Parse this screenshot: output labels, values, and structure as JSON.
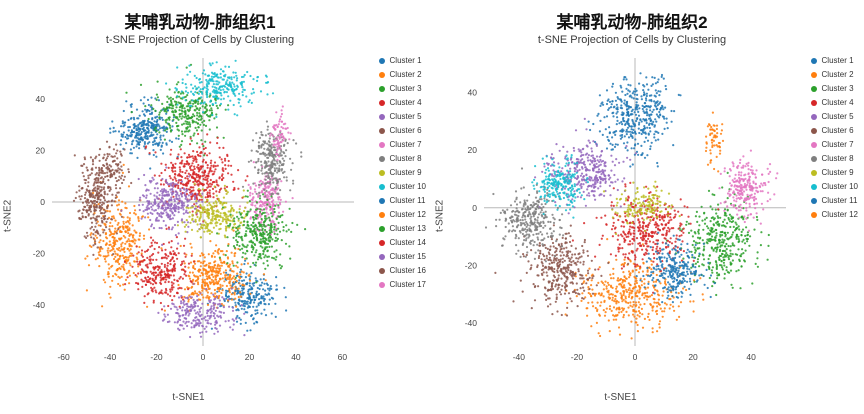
{
  "chart_data": [
    {
      "type": "scatter",
      "title": "某哺乳动物-肺组织1",
      "subtitle": "t-SNE Projection of Cells by Clustering",
      "xlabel": "t-SNE1",
      "ylabel": "t-SNE2",
      "x_domain": [
        -65,
        65
      ],
      "y_domain": [
        -56,
        56
      ],
      "xticks": [
        -60,
        -40,
        -20,
        0,
        20,
        40,
        60
      ],
      "yticks": [
        -40,
        -20,
        0,
        20,
        40
      ],
      "zerolines": true,
      "grid": false,
      "legend_position": "right",
      "clusters": [
        {
          "label": "Cluster 1",
          "color": "#1f77b4",
          "cx": -25,
          "cy": 28,
          "sx": 6,
          "sy": 5,
          "n": 300
        },
        {
          "label": "Cluster 2",
          "color": "#ff7f0e",
          "cx": -36,
          "cy": -16,
          "sx": 5,
          "sy": 8,
          "n": 320
        },
        {
          "label": "Cluster 3",
          "color": "#2ca02c",
          "cx": -7,
          "cy": 35,
          "sx": 7,
          "sy": 5,
          "n": 300
        },
        {
          "label": "Cluster 4",
          "color": "#d62728",
          "cx": -2,
          "cy": 10,
          "sx": 8,
          "sy": 6,
          "n": 380
        },
        {
          "label": "Cluster 5",
          "color": "#9467bd",
          "cx": -15,
          "cy": -1,
          "sx": 6,
          "sy": 5,
          "n": 300
        },
        {
          "label": "Cluster 6",
          "color": "#8c564b",
          "cx": -46,
          "cy": 1,
          "sx": 4,
          "sy": 9,
          "n": 300
        },
        {
          "label": "Cluster 7",
          "color": "#e377c2",
          "cx": 27,
          "cy": 1,
          "sx": 4,
          "sy": 6,
          "n": 220
        },
        {
          "label": "Cluster 8",
          "color": "#7f7f7f",
          "cx": 30,
          "cy": 16,
          "sx": 4,
          "sy": 6,
          "n": 260
        },
        {
          "label": "Cluster 9",
          "color": "#bcbd22",
          "cx": 5,
          "cy": -5,
          "sx": 6,
          "sy": 4,
          "n": 240
        },
        {
          "label": "Cluster 10",
          "color": "#17becf",
          "cx": 7,
          "cy": 45,
          "sx": 8,
          "sy": 4,
          "n": 260
        },
        {
          "label": "Cluster 11",
          "color": "#1f77b4",
          "cx": 19,
          "cy": -36,
          "sx": 6,
          "sy": 5,
          "n": 240
        },
        {
          "label": "Cluster 12",
          "color": "#ff7f0e",
          "cx": 4,
          "cy": -29,
          "sx": 7,
          "sy": 6,
          "n": 340
        },
        {
          "label": "Cluster 13",
          "color": "#2ca02c",
          "cx": 24,
          "cy": -13,
          "sx": 6,
          "sy": 6,
          "n": 320
        },
        {
          "label": "Cluster 14",
          "color": "#d62728",
          "cx": -18,
          "cy": -27,
          "sx": 6,
          "sy": 6,
          "n": 280
        },
        {
          "label": "Cluster 15",
          "color": "#9467bd",
          "cx": -2,
          "cy": -43,
          "sx": 7,
          "sy": 4,
          "n": 220
        },
        {
          "label": "Cluster 16",
          "color": "#8c564b",
          "cx": -39,
          "cy": 13,
          "sx": 3,
          "sy": 4,
          "n": 90
        },
        {
          "label": "Cluster 17",
          "color": "#e377c2",
          "cx": 33,
          "cy": 26,
          "sx": 2,
          "sy": 4,
          "n": 70
        }
      ]
    },
    {
      "type": "scatter",
      "title": "某哺乳动物-肺组织2",
      "subtitle": "t-SNE Projection of Cells by Clustering",
      "xlabel": "t-SNE1",
      "ylabel": "t-SNE2",
      "x_domain": [
        -52,
        52
      ],
      "y_domain": [
        -48,
        52
      ],
      "xticks": [
        -40,
        -20,
        0,
        20,
        40
      ],
      "yticks": [
        -40,
        -20,
        0,
        20,
        40
      ],
      "zerolines": true,
      "grid": false,
      "legend_position": "right",
      "clusters": [
        {
          "label": "Cluster 1",
          "color": "#1f77b4",
          "cx": 0,
          "cy": 32,
          "sx": 6,
          "sy": 7,
          "n": 400
        },
        {
          "label": "Cluster 2",
          "color": "#ff7f0e",
          "cx": -2,
          "cy": -30,
          "sx": 9,
          "sy": 6,
          "n": 400
        },
        {
          "label": "Cluster 3",
          "color": "#2ca02c",
          "cx": 30,
          "cy": -11,
          "sx": 6,
          "sy": 7,
          "n": 380
        },
        {
          "label": "Cluster 4",
          "color": "#d62728",
          "cx": 4,
          "cy": -8,
          "sx": 7,
          "sy": 6,
          "n": 380
        },
        {
          "label": "Cluster 5",
          "color": "#9467bd",
          "cx": -17,
          "cy": 12,
          "sx": 6,
          "sy": 5,
          "n": 330
        },
        {
          "label": "Cluster 6",
          "color": "#8c564b",
          "cx": -26,
          "cy": -21,
          "sx": 6,
          "sy": 6,
          "n": 330
        },
        {
          "label": "Cluster 7",
          "color": "#e377c2",
          "cx": 38,
          "cy": 7,
          "sx": 4,
          "sy": 5,
          "n": 240
        },
        {
          "label": "Cluster 8",
          "color": "#7f7f7f",
          "cx": -36,
          "cy": -4,
          "sx": 5,
          "sy": 5,
          "n": 300
        },
        {
          "label": "Cluster 9",
          "color": "#bcbd22",
          "cx": 2,
          "cy": 1,
          "sx": 5,
          "sy": 3,
          "n": 140
        },
        {
          "label": "Cluster 10",
          "color": "#17becf",
          "cx": -26,
          "cy": 8,
          "sx": 4,
          "sy": 4,
          "n": 220
        },
        {
          "label": "Cluster 11",
          "color": "#1f77b4",
          "cx": 14,
          "cy": -22,
          "sx": 5,
          "sy": 5,
          "n": 260
        },
        {
          "label": "Cluster 12",
          "color": "#ff7f0e",
          "cx": 27,
          "cy": 24,
          "sx": 1.5,
          "sy": 4,
          "n": 60
        }
      ]
    }
  ]
}
